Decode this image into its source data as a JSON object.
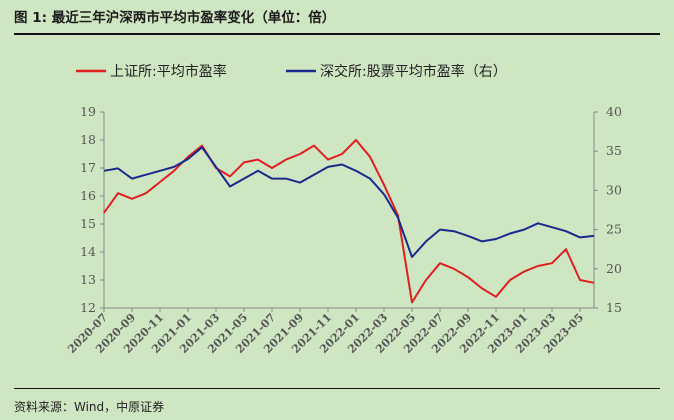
{
  "header": {
    "figure_label": "图 1:",
    "title": "最近三年沪深两市平均市盈率变化（单位：倍）"
  },
  "footer": {
    "source": "资料来源：Wind，中原证券"
  },
  "colors": {
    "sse": "#e02020",
    "szse": "#1a2a8c",
    "background": "#cfe6c2"
  },
  "chart_data": {
    "type": "line",
    "title": "",
    "legend_position": "top",
    "grid": false,
    "x_ticks": [
      "2020-07",
      "2020-09",
      "2020-11",
      "2021-01",
      "2021-03",
      "2021-05",
      "2021-07",
      "2021-09",
      "2021-11",
      "2022-01",
      "2022-03",
      "2022-05",
      "2022-07",
      "2022-09",
      "2022-11",
      "2023-01",
      "2023-03",
      "2023-05"
    ],
    "x_range": [
      "2020-07",
      "2023-06"
    ],
    "y_left": {
      "min": 12,
      "max": 19,
      "ticks": [
        12,
        13,
        14,
        15,
        16,
        17,
        18,
        19
      ]
    },
    "y_right": {
      "min": 15,
      "max": 40,
      "ticks": [
        15,
        20,
        25,
        30,
        35,
        40
      ]
    },
    "series": [
      {
        "name": "上证所:平均市盈率",
        "axis": "left",
        "color": "#e02020",
        "points": [
          [
            "2020-07",
            15.4
          ],
          [
            "2020-08",
            16.1
          ],
          [
            "2020-09",
            15.9
          ],
          [
            "2020-10",
            16.1
          ],
          [
            "2020-11",
            16.5
          ],
          [
            "2020-12",
            16.9
          ],
          [
            "2021-01",
            17.4
          ],
          [
            "2021-02",
            17.8
          ],
          [
            "2021-03",
            17.0
          ],
          [
            "2021-04",
            16.7
          ],
          [
            "2021-05",
            17.2
          ],
          [
            "2021-06",
            17.3
          ],
          [
            "2021-07",
            17.0
          ],
          [
            "2021-08",
            17.3
          ],
          [
            "2021-09",
            17.5
          ],
          [
            "2021-10",
            17.8
          ],
          [
            "2021-11",
            17.3
          ],
          [
            "2021-12",
            17.5
          ],
          [
            "2022-01",
            18.0
          ],
          [
            "2022-02",
            17.4
          ],
          [
            "2022-03",
            16.4
          ],
          [
            "2022-04",
            15.3
          ],
          [
            "2022-05",
            12.2
          ],
          [
            "2022-06",
            13.0
          ],
          [
            "2022-07",
            13.6
          ],
          [
            "2022-08",
            13.4
          ],
          [
            "2022-09",
            13.1
          ],
          [
            "2022-10",
            12.7
          ],
          [
            "2022-11",
            12.4
          ],
          [
            "2022-12",
            13.0
          ],
          [
            "2023-01",
            13.3
          ],
          [
            "2023-02",
            13.5
          ],
          [
            "2023-03",
            13.6
          ],
          [
            "2023-04",
            14.1
          ],
          [
            "2023-05",
            13.0
          ],
          [
            "2023-06",
            12.9
          ]
        ]
      },
      {
        "name": "深交所:股票平均市盈率（右）",
        "axis": "right",
        "color": "#1a2a8c",
        "points": [
          [
            "2020-07",
            32.5
          ],
          [
            "2020-08",
            32.8
          ],
          [
            "2020-09",
            31.5
          ],
          [
            "2020-10",
            32.0
          ],
          [
            "2020-11",
            32.5
          ],
          [
            "2020-12",
            33.0
          ],
          [
            "2021-01",
            34.0
          ],
          [
            "2021-02",
            35.5
          ],
          [
            "2021-03",
            33.0
          ],
          [
            "2021-04",
            30.5
          ],
          [
            "2021-05",
            31.5
          ],
          [
            "2021-06",
            32.5
          ],
          [
            "2021-07",
            31.5
          ],
          [
            "2021-08",
            31.5
          ],
          [
            "2021-09",
            31.0
          ],
          [
            "2021-10",
            32.0
          ],
          [
            "2021-11",
            33.0
          ],
          [
            "2021-12",
            33.3
          ],
          [
            "2022-01",
            32.5
          ],
          [
            "2022-02",
            31.5
          ],
          [
            "2022-03",
            29.5
          ],
          [
            "2022-04",
            26.5
          ],
          [
            "2022-05",
            21.5
          ],
          [
            "2022-06",
            23.5
          ],
          [
            "2022-07",
            25.0
          ],
          [
            "2022-08",
            24.8
          ],
          [
            "2022-09",
            24.2
          ],
          [
            "2022-10",
            23.5
          ],
          [
            "2022-11",
            23.8
          ],
          [
            "2022-12",
            24.5
          ],
          [
            "2023-01",
            25.0
          ],
          [
            "2023-02",
            25.8
          ],
          [
            "2023-03",
            25.3
          ],
          [
            "2023-04",
            24.8
          ],
          [
            "2023-05",
            24.0
          ],
          [
            "2023-06",
            24.2
          ]
        ]
      }
    ]
  }
}
